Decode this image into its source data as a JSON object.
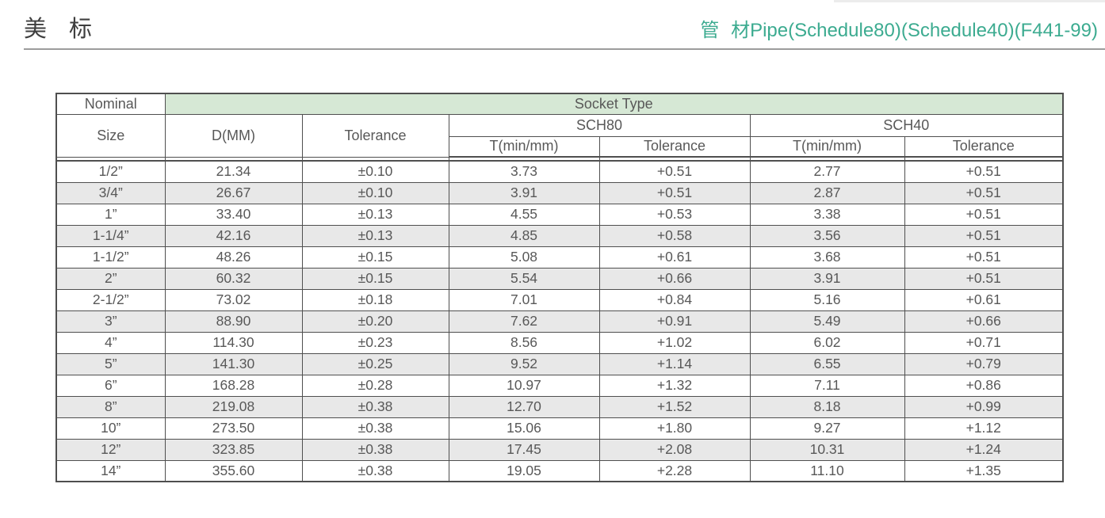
{
  "page": {
    "title_cn": "美 标",
    "subtitle": "管 材Pipe(Schedule80)(Schedule40)(F441-99)"
  },
  "colors": {
    "accent_teal": "#3cab90",
    "banner_green": "#d6e8d5",
    "stripe_gray": "#e8e8e8",
    "border_dark": "#4f4f4f",
    "text_gray": "#585858"
  },
  "table": {
    "header": {
      "nominal": "Nominal",
      "size": "Size",
      "socket_type": "Socket Type",
      "d_mm": "D(MM)",
      "tolerance": "Tolerance",
      "sch80": "SCH80",
      "sch40": "SCH40",
      "t_min_sch80": "T(min/mm)",
      "tolerance_sch80": "Tolerance",
      "t_min_sch40": "T(min/mm)",
      "tolerance_sch40": "Tolerance"
    },
    "rows": [
      [
        "1/2”",
        "21.34",
        "±0.10",
        "3.73",
        "+0.51",
        "2.77",
        "+0.51"
      ],
      [
        "3/4”",
        "26.67",
        "±0.10",
        "3.91",
        "+0.51",
        "2.87",
        "+0.51"
      ],
      [
        "1”",
        "33.40",
        "±0.13",
        "4.55",
        "+0.53",
        "3.38",
        "+0.51"
      ],
      [
        "1-1/4”",
        "42.16",
        "±0.13",
        "4.85",
        "+0.58",
        "3.56",
        "+0.51"
      ],
      [
        "1-1/2”",
        "48.26",
        "±0.15",
        "5.08",
        "+0.61",
        "3.68",
        "+0.51"
      ],
      [
        "2”",
        "60.32",
        "±0.15",
        "5.54",
        "+0.66",
        "3.91",
        "+0.51"
      ],
      [
        "2-1/2”",
        "73.02",
        "±0.18",
        "7.01",
        "+0.84",
        "5.16",
        "+0.61"
      ],
      [
        "3”",
        "88.90",
        "±0.20",
        "7.62",
        "+0.91",
        "5.49",
        "+0.66"
      ],
      [
        "4”",
        "114.30",
        "±0.23",
        "8.56",
        "+1.02",
        "6.02",
        "+0.71"
      ],
      [
        "5”",
        "141.30",
        "±0.25",
        "9.52",
        "+1.14",
        "6.55",
        "+0.79"
      ],
      [
        "6”",
        "168.28",
        "±0.28",
        "10.97",
        "+1.32",
        "7.11",
        "+0.86"
      ],
      [
        "8”",
        "219.08",
        "±0.38",
        "12.70",
        "+1.52",
        "8.18",
        "+0.99"
      ],
      [
        "10”",
        "273.50",
        "±0.38",
        "15.06",
        "+1.80",
        "9.27",
        "+1.12"
      ],
      [
        "12”",
        "323.85",
        "±0.38",
        "17.45",
        "+2.08",
        "10.31",
        "+1.24"
      ],
      [
        "14”",
        "355.60",
        "±0.38",
        "19.05",
        "+2.28",
        "11.10",
        "+1.35"
      ]
    ]
  }
}
